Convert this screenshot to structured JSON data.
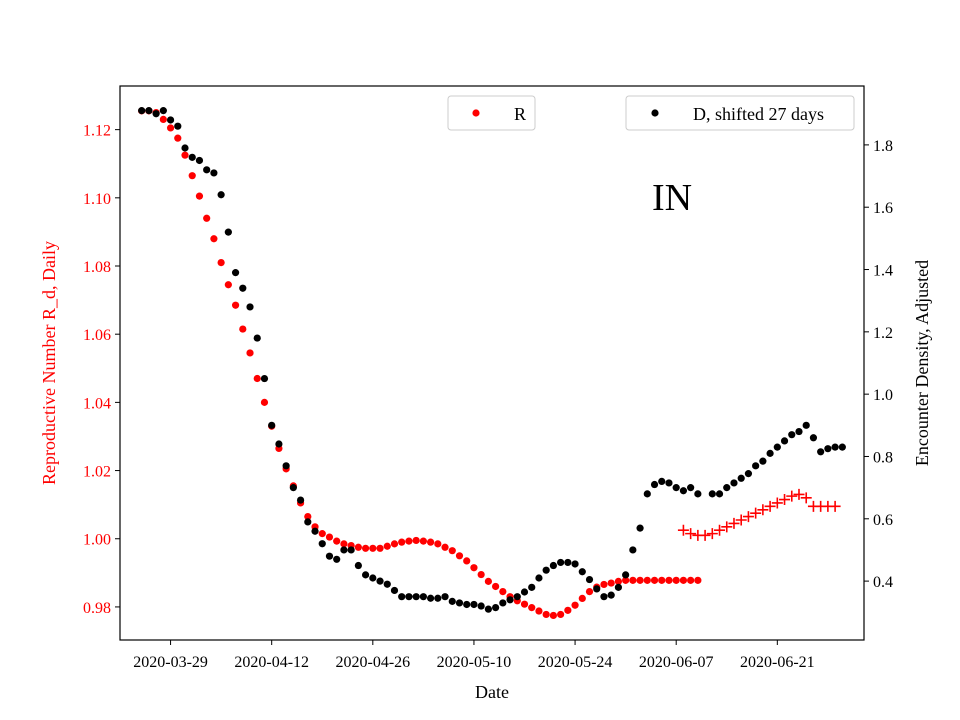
{
  "chart_data": {
    "type": "scatter",
    "annotation": "IN",
    "xlabel": "Date",
    "ylabel_left": "Reproductive Number R_d, Daily",
    "ylabel_right": "Encounter Density, Adjusted",
    "x_ticks": [
      "2020-03-29",
      "2020-04-12",
      "2020-04-26",
      "2020-05-10",
      "2020-05-24",
      "2020-06-07",
      "2020-06-21"
    ],
    "x_range": [
      "2020-03-22",
      "2020-07-03"
    ],
    "y_left_ticks": [
      0.98,
      1.0,
      1.02,
      1.04,
      1.06,
      1.08,
      1.1,
      1.12
    ],
    "y_left_range": [
      0.9703,
      1.1328
    ],
    "y_right_ticks": [
      0.4,
      0.6,
      0.8,
      1.0,
      1.2,
      1.4,
      1.6,
      1.8
    ],
    "y_right_range": [
      0.211,
      1.989
    ],
    "grid": false,
    "colors": {
      "r": "#ff0000",
      "d": "#000000",
      "left_axis": "#ff0000",
      "right_axis": "#000000"
    },
    "legends": [
      {
        "position": "top-center",
        "label": "R",
        "color": "#ff0000",
        "marker": "dot"
      },
      {
        "position": "top-right",
        "label": "D, shifted 27 days",
        "color": "#000000",
        "marker": "dot"
      }
    ],
    "series": [
      {
        "name": "R",
        "axis": "left",
        "marker": "dot",
        "color": "#ff0000",
        "start_date": "2020-03-25",
        "values": [
          1.1255,
          1.1255,
          1.125,
          1.123,
          1.1205,
          1.1175,
          1.1125,
          1.1065,
          1.1005,
          1.094,
          1.088,
          1.081,
          1.0745,
          1.0685,
          1.0615,
          1.0545,
          1.047,
          1.04,
          1.033,
          1.0265,
          1.0205,
          1.0155,
          1.0105,
          1.0065,
          1.0035,
          1.0015,
          1.0005,
          0.9993,
          0.9985,
          0.998,
          0.9975,
          0.9972,
          0.9972,
          0.9972,
          0.9978,
          0.9985,
          0.999,
          0.9993,
          0.9995,
          0.9993,
          0.999,
          0.9985,
          0.9975,
          0.9965,
          0.995,
          0.9935,
          0.9915,
          0.9895,
          0.9875,
          0.986,
          0.9845,
          0.983,
          0.9818,
          0.9808,
          0.9798,
          0.9788,
          0.9778,
          0.9775,
          0.9778,
          0.979,
          0.9805,
          0.9825,
          0.9845,
          0.9858,
          0.9866,
          0.987,
          0.9875,
          0.9878,
          0.9878,
          0.9878,
          0.9878,
          0.9878,
          0.9878,
          0.9878,
          0.9878,
          0.9878,
          0.9878,
          0.9878
        ]
      },
      {
        "name": "D, shifted 27 days",
        "axis": "right",
        "marker": "dot",
        "color": "#000000",
        "start_date": "2020-03-25",
        "values": [
          1.91,
          1.91,
          1.9,
          1.91,
          1.88,
          1.86,
          1.79,
          1.76,
          1.75,
          1.72,
          1.71,
          1.64,
          1.52,
          1.39,
          1.34,
          1.28,
          1.18,
          1.05,
          0.9,
          0.84,
          0.77,
          0.7,
          0.66,
          0.59,
          0.56,
          0.52,
          0.48,
          0.47,
          0.5,
          0.5,
          0.45,
          0.42,
          0.41,
          0.4,
          0.39,
          0.37,
          0.35,
          0.35,
          0.35,
          0.35,
          0.345,
          0.345,
          0.35,
          0.335,
          0.33,
          0.325,
          0.325,
          0.32,
          0.31,
          0.315,
          0.33,
          0.34,
          0.35,
          0.365,
          0.38,
          0.41,
          0.435,
          0.45,
          0.46,
          0.46,
          0.455,
          0.43,
          0.405,
          0.375,
          0.35,
          0.355,
          0.38,
          0.42,
          0.5,
          0.57,
          0.68,
          0.71,
          0.72,
          0.715,
          0.7,
          0.69,
          0.7,
          0.68
        ]
      },
      {
        "name": "",
        "axis": "right",
        "marker": "dot",
        "color": "#000000",
        "start_date": "2020-06-12",
        "values": [
          0.68,
          0.68,
          0.7,
          0.715,
          0.73,
          0.745,
          0.77,
          0.785,
          0.81,
          0.83,
          0.85,
          0.87,
          0.88,
          0.9,
          0.86,
          0.815,
          0.825,
          0.83,
          0.83
        ]
      },
      {
        "name": "",
        "axis": "left",
        "marker": "plus",
        "color": "#ff0000",
        "start_date": "2020-06-08",
        "values": [
          1.0025,
          1.0015,
          1.001,
          1.001,
          1.0015,
          1.0025,
          1.0035,
          1.0045,
          1.0055,
          1.0065,
          1.0075,
          1.0085,
          1.0095,
          1.0105,
          1.0115,
          1.0125,
          1.013,
          1.012,
          1.0095,
          1.0095,
          1.0095,
          1.0095
        ]
      }
    ]
  }
}
